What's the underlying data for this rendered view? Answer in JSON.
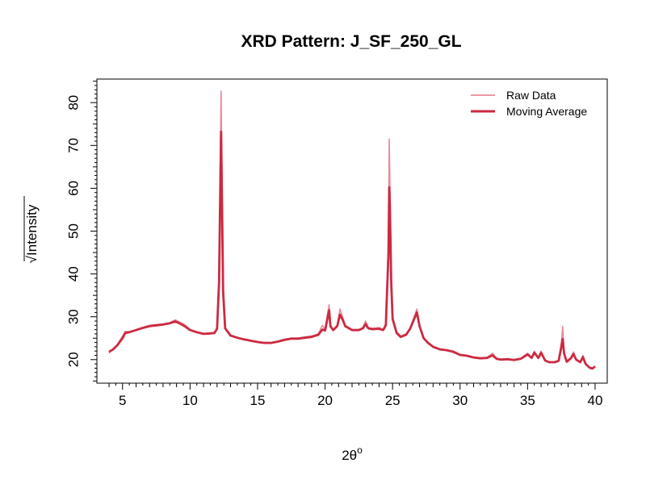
{
  "chart_data": {
    "type": "line",
    "title": "XRD Pattern: J_SF_250_GL",
    "xlabel": "2θ",
    "xlabel_superscript": "o",
    "ylabel": "Intensity",
    "ylabel_prefix": "√",
    "xlim": [
      3.1,
      40.9
    ],
    "ylim": [
      14.5,
      85.5
    ],
    "xticks": [
      5,
      10,
      15,
      20,
      25,
      30,
      35,
      40
    ],
    "yticks": [
      20,
      30,
      40,
      50,
      60,
      70,
      80
    ],
    "legend_position": "top-right",
    "grid": false,
    "series": [
      {
        "name": "Raw Data",
        "color": "#e8899a",
        "points": [
          [
            4.0,
            21.5
          ],
          [
            4.3,
            22.6
          ],
          [
            4.6,
            23.5
          ],
          [
            5.0,
            25.5
          ],
          [
            5.2,
            26.6
          ],
          [
            5.5,
            26.5
          ],
          [
            6.0,
            27.0
          ],
          [
            6.5,
            27.5
          ],
          [
            7.0,
            28.0
          ],
          [
            7.5,
            28.2
          ],
          [
            8.0,
            28.3
          ],
          [
            8.5,
            28.6
          ],
          [
            8.9,
            29.3
          ],
          [
            9.2,
            28.8
          ],
          [
            9.6,
            28.2
          ],
          [
            10.0,
            27.0
          ],
          [
            10.5,
            26.5
          ],
          [
            11.0,
            26.1
          ],
          [
            11.5,
            26.3
          ],
          [
            11.8,
            26.1
          ],
          [
            12.0,
            27.5
          ],
          [
            12.15,
            40.0
          ],
          [
            12.25,
            70.0
          ],
          [
            12.3,
            82.7
          ],
          [
            12.35,
            66.0
          ],
          [
            12.45,
            38.0
          ],
          [
            12.6,
            27.5
          ],
          [
            13.0,
            25.8
          ],
          [
            13.5,
            25.2
          ],
          [
            14.0,
            24.8
          ],
          [
            14.5,
            24.5
          ],
          [
            15.0,
            24.2
          ],
          [
            15.5,
            24.0
          ],
          [
            16.0,
            24.0
          ],
          [
            16.5,
            24.3
          ],
          [
            17.0,
            24.8
          ],
          [
            17.5,
            25.0
          ],
          [
            18.0,
            25.0
          ],
          [
            18.5,
            25.3
          ],
          [
            19.0,
            25.5
          ],
          [
            19.5,
            26.0
          ],
          [
            19.8,
            28.0
          ],
          [
            20.0,
            27.0
          ],
          [
            20.2,
            31.0
          ],
          [
            20.3,
            32.8
          ],
          [
            20.4,
            28.0
          ],
          [
            20.6,
            27.0
          ],
          [
            20.9,
            28.0
          ],
          [
            21.1,
            31.8
          ],
          [
            21.3,
            30.0
          ],
          [
            21.5,
            28.0
          ],
          [
            22.0,
            27.0
          ],
          [
            22.5,
            27.0
          ],
          [
            22.8,
            27.5
          ],
          [
            23.0,
            29.0
          ],
          [
            23.2,
            27.5
          ],
          [
            23.5,
            27.3
          ],
          [
            24.0,
            27.5
          ],
          [
            24.3,
            27.0
          ],
          [
            24.5,
            28.5
          ],
          [
            24.7,
            48.0
          ],
          [
            24.75,
            71.5
          ],
          [
            24.8,
            62.0
          ],
          [
            24.9,
            40.0
          ],
          [
            25.0,
            30.0
          ],
          [
            25.3,
            26.5
          ],
          [
            25.6,
            25.5
          ],
          [
            26.0,
            26.0
          ],
          [
            26.3,
            27.5
          ],
          [
            26.6,
            30.0
          ],
          [
            26.8,
            31.8
          ],
          [
            27.0,
            28.0
          ],
          [
            27.3,
            25.0
          ],
          [
            27.6,
            24.0
          ],
          [
            28.0,
            23.0
          ],
          [
            28.5,
            22.5
          ],
          [
            29.0,
            22.3
          ],
          [
            29.5,
            22.0
          ],
          [
            30.0,
            21.2
          ],
          [
            30.5,
            21.0
          ],
          [
            31.0,
            20.6
          ],
          [
            31.5,
            20.4
          ],
          [
            32.0,
            20.5
          ],
          [
            32.4,
            21.5
          ],
          [
            32.7,
            20.3
          ],
          [
            33.0,
            20.0
          ],
          [
            33.5,
            20.2
          ],
          [
            34.0,
            20.0
          ],
          [
            34.5,
            20.3
          ],
          [
            35.0,
            21.5
          ],
          [
            35.3,
            20.5
          ],
          [
            35.5,
            22.0
          ],
          [
            35.8,
            20.5
          ],
          [
            36.0,
            22.0
          ],
          [
            36.3,
            19.8
          ],
          [
            36.6,
            19.5
          ],
          [
            37.0,
            19.5
          ],
          [
            37.3,
            19.8
          ],
          [
            37.5,
            24.0
          ],
          [
            37.6,
            27.8
          ],
          [
            37.7,
            22.0
          ],
          [
            37.9,
            19.5
          ],
          [
            38.2,
            20.5
          ],
          [
            38.4,
            21.8
          ],
          [
            38.6,
            20.0
          ],
          [
            38.9,
            19.5
          ],
          [
            39.1,
            21.0
          ],
          [
            39.3,
            19.0
          ],
          [
            39.6,
            18.0
          ],
          [
            39.8,
            17.8
          ],
          [
            40.0,
            18.5
          ]
        ]
      },
      {
        "name": "Moving Average",
        "color": "#cc2a40",
        "points": [
          [
            4.0,
            21.8
          ],
          [
            4.3,
            22.4
          ],
          [
            4.6,
            23.3
          ],
          [
            5.0,
            25.0
          ],
          [
            5.2,
            26.2
          ],
          [
            5.5,
            26.4
          ],
          [
            6.0,
            26.9
          ],
          [
            6.5,
            27.4
          ],
          [
            7.0,
            27.8
          ],
          [
            7.5,
            28.0
          ],
          [
            8.0,
            28.2
          ],
          [
            8.5,
            28.5
          ],
          [
            8.9,
            28.9
          ],
          [
            9.2,
            28.5
          ],
          [
            9.6,
            27.8
          ],
          [
            10.0,
            26.9
          ],
          [
            10.5,
            26.4
          ],
          [
            11.0,
            26.0
          ],
          [
            11.5,
            26.1
          ],
          [
            11.8,
            26.2
          ],
          [
            12.0,
            27.2
          ],
          [
            12.15,
            38.0
          ],
          [
            12.25,
            63.0
          ],
          [
            12.3,
            73.2
          ],
          [
            12.35,
            60.0
          ],
          [
            12.45,
            36.0
          ],
          [
            12.6,
            27.3
          ],
          [
            13.0,
            25.6
          ],
          [
            13.5,
            25.1
          ],
          [
            14.0,
            24.7
          ],
          [
            14.5,
            24.4
          ],
          [
            15.0,
            24.1
          ],
          [
            15.5,
            23.9
          ],
          [
            16.0,
            23.9
          ],
          [
            16.5,
            24.2
          ],
          [
            17.0,
            24.6
          ],
          [
            17.5,
            24.9
          ],
          [
            18.0,
            24.9
          ],
          [
            18.5,
            25.1
          ],
          [
            19.0,
            25.3
          ],
          [
            19.5,
            25.8
          ],
          [
            19.8,
            27.0
          ],
          [
            20.0,
            26.8
          ],
          [
            20.2,
            30.0
          ],
          [
            20.3,
            31.5
          ],
          [
            20.4,
            27.8
          ],
          [
            20.6,
            26.9
          ],
          [
            20.9,
            27.8
          ],
          [
            21.1,
            30.5
          ],
          [
            21.3,
            29.3
          ],
          [
            21.5,
            27.8
          ],
          [
            22.0,
            26.9
          ],
          [
            22.5,
            26.9
          ],
          [
            22.8,
            27.3
          ],
          [
            23.0,
            28.3
          ],
          [
            23.2,
            27.3
          ],
          [
            23.5,
            27.1
          ],
          [
            24.0,
            27.2
          ],
          [
            24.3,
            26.9
          ],
          [
            24.5,
            28.0
          ],
          [
            24.7,
            45.0
          ],
          [
            24.75,
            60.2
          ],
          [
            24.8,
            56.0
          ],
          [
            24.9,
            38.0
          ],
          [
            25.0,
            29.5
          ],
          [
            25.3,
            26.2
          ],
          [
            25.6,
            25.3
          ],
          [
            26.0,
            25.8
          ],
          [
            26.3,
            27.2
          ],
          [
            26.6,
            29.5
          ],
          [
            26.8,
            31.0
          ],
          [
            27.0,
            27.8
          ],
          [
            27.3,
            25.0
          ],
          [
            27.6,
            24.0
          ],
          [
            28.0,
            23.0
          ],
          [
            28.5,
            22.4
          ],
          [
            29.0,
            22.2
          ],
          [
            29.5,
            21.8
          ],
          [
            30.0,
            21.1
          ],
          [
            30.5,
            20.9
          ],
          [
            31.0,
            20.5
          ],
          [
            31.5,
            20.3
          ],
          [
            32.0,
            20.4
          ],
          [
            32.4,
            21.0
          ],
          [
            32.7,
            20.2
          ],
          [
            33.0,
            20.0
          ],
          [
            33.5,
            20.1
          ],
          [
            34.0,
            19.9
          ],
          [
            34.5,
            20.2
          ],
          [
            35.0,
            21.2
          ],
          [
            35.3,
            20.4
          ],
          [
            35.5,
            21.6
          ],
          [
            35.8,
            20.4
          ],
          [
            36.0,
            21.6
          ],
          [
            36.3,
            19.8
          ],
          [
            36.6,
            19.4
          ],
          [
            37.0,
            19.4
          ],
          [
            37.3,
            19.7
          ],
          [
            37.5,
            23.0
          ],
          [
            37.6,
            24.8
          ],
          [
            37.7,
            21.5
          ],
          [
            37.9,
            19.5
          ],
          [
            38.2,
            20.3
          ],
          [
            38.4,
            21.3
          ],
          [
            38.6,
            20.0
          ],
          [
            38.9,
            19.4
          ],
          [
            39.1,
            20.6
          ],
          [
            39.3,
            19.0
          ],
          [
            39.6,
            18.1
          ],
          [
            39.8,
            17.9
          ],
          [
            40.0,
            18.4
          ]
        ]
      }
    ]
  }
}
